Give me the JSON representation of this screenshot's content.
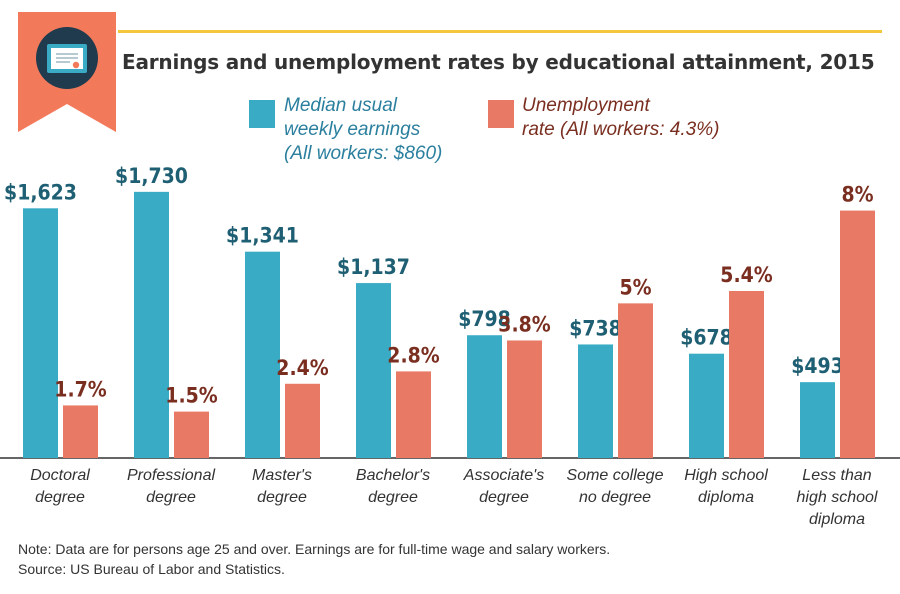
{
  "icon": {
    "name": "diploma-certificate-icon"
  },
  "colors": {
    "earnings": "#3aabc4",
    "unemployment": "#e87965",
    "earnings_label": "#1f5f73",
    "unemployment_label": "#7a2e20",
    "ribbon": "#f27a5a",
    "accent_line": "#f4c63d"
  },
  "chart_data": {
    "type": "bar",
    "title": "Earnings and unemployment rates by educational attainment, 2015",
    "categories": [
      "Doctoral\ndegree",
      "Professional\ndegree",
      "Master's\ndegree",
      "Bachelor's\ndegree",
      "Associate's\ndegree",
      "Some college\nno degree",
      "High school\ndiploma",
      "Less than\nhigh school\ndiploma"
    ],
    "series": [
      {
        "name": "Median usual weekly earnings",
        "legend_label": "Median usual\nweekly earnings\n(All workers: $860)",
        "unit": "USD per week",
        "values": [
          1623,
          1730,
          1341,
          1137,
          798,
          738,
          678,
          493
        ],
        "labels": [
          "$1,623",
          "$1,730",
          "$1,341",
          "$1,137",
          "$798",
          "$738",
          "$678",
          "$493"
        ],
        "ylim": [
          0,
          1950
        ]
      },
      {
        "name": "Unemployment rate",
        "legend_label": "Unemployment\nrate (All workers: 4.3%)",
        "unit": "percent",
        "values": [
          1.7,
          1.5,
          2.4,
          2.8,
          3.8,
          5.0,
          5.4,
          8.0
        ],
        "labels": [
          "1.7%",
          "1.5%",
          "2.4%",
          "2.8%",
          "3.8%",
          "5%",
          "5.4%",
          "8%"
        ],
        "ylim": [
          0,
          9.7
        ]
      }
    ],
    "xlabel": "",
    "ylabel": "",
    "grid": false,
    "legend": "top"
  },
  "note": {
    "line1": "Note: Data are for persons age 25 and over. Earnings are for full-time wage and salary workers.",
    "line2": "Source: US Bureau of Labor and Statistics."
  }
}
